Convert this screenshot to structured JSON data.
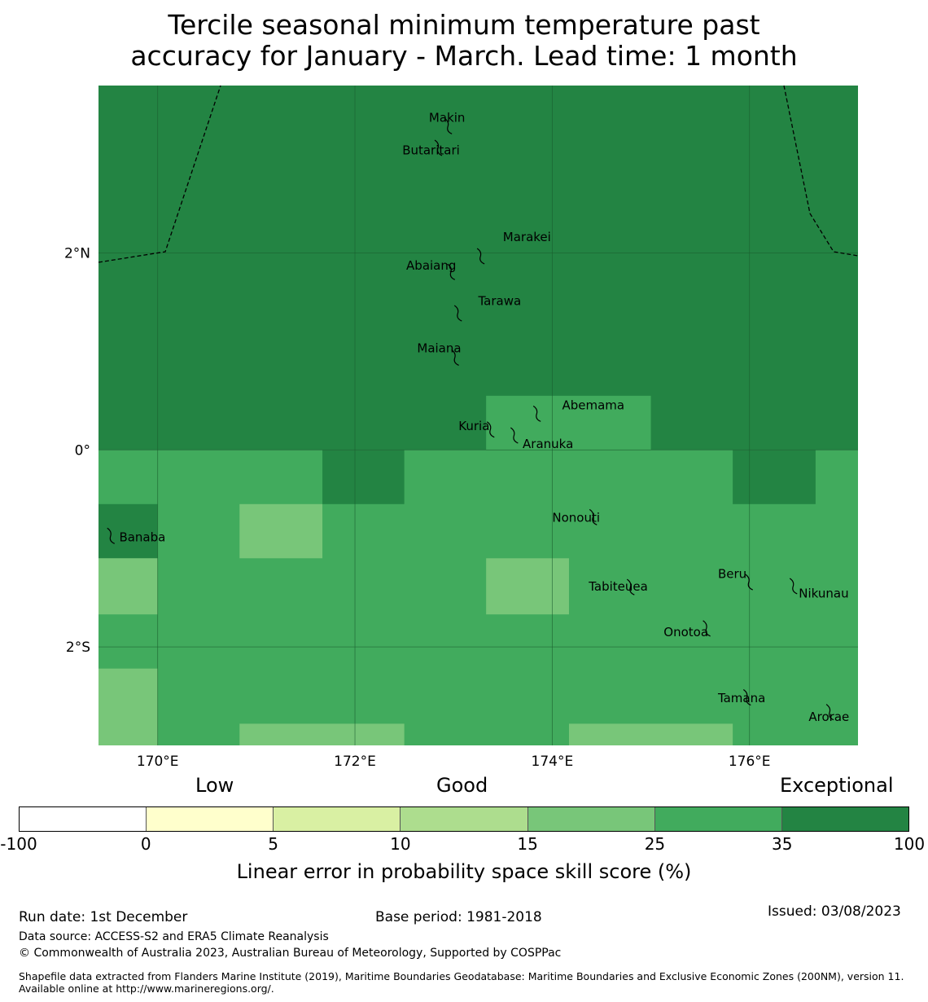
{
  "title": {
    "line1": "Tercile seasonal minimum temperature past",
    "line2": "accuracy for January - March. Lead time: 1 month"
  },
  "map": {
    "lat_range": [
      -3.0,
      3.7
    ],
    "lon_range": [
      169.4,
      177.1
    ],
    "lat_ticks": [
      {
        "value": 2,
        "label": "2°N"
      },
      {
        "value": 0,
        "label": "0°"
      },
      {
        "value": -2,
        "label": "2°S"
      }
    ],
    "lon_ticks": [
      {
        "value": 170,
        "label": "170°E"
      },
      {
        "value": 172,
        "label": "172°E"
      },
      {
        "value": 174,
        "label": "174°E"
      },
      {
        "value": 176,
        "label": "176°E"
      }
    ],
    "background_category": "exceptional",
    "skill_cells": [
      {
        "lon": [
          169.4,
          177.1
        ],
        "lat": [
          0.0,
          3.7
        ],
        "category": "exceptional"
      },
      {
        "lon": [
          169.4,
          177.1
        ],
        "lat": [
          -3.0,
          0.0
        ],
        "category": "good_high"
      },
      {
        "lon": [
          173.33,
          175.0
        ],
        "lat": [
          0.0,
          0.55
        ],
        "category": "good_high"
      },
      {
        "lon": [
          171.67,
          172.5
        ],
        "lat": [
          -0.55,
          0.0
        ],
        "category": "exceptional"
      },
      {
        "lon": [
          175.83,
          176.67
        ],
        "lat": [
          -0.55,
          0.0
        ],
        "category": "exceptional"
      },
      {
        "lon": [
          169.4,
          170.0
        ],
        "lat": [
          -1.1,
          -0.55
        ],
        "category": "exceptional"
      },
      {
        "lon": [
          170.83,
          171.67
        ],
        "lat": [
          -1.1,
          -0.55
        ],
        "category": "good_mid"
      },
      {
        "lon": [
          169.4,
          170.0
        ],
        "lat": [
          -1.67,
          -1.1
        ],
        "category": "good_mid"
      },
      {
        "lon": [
          173.33,
          174.17
        ],
        "lat": [
          -1.67,
          -1.1
        ],
        "category": "good_mid"
      },
      {
        "lon": [
          169.4,
          170.0
        ],
        "lat": [
          -3.0,
          -2.22
        ],
        "category": "good_mid"
      },
      {
        "lon": [
          170.83,
          172.5
        ],
        "lat": [
          -3.0,
          -2.78
        ],
        "category": "good_mid"
      },
      {
        "lon": [
          174.17,
          175.83
        ],
        "lat": [
          -3.0,
          -2.78
        ],
        "category": "good_mid"
      }
    ],
    "places": [
      {
        "name": "Makin",
        "lon": 172.95,
        "lat": 3.3,
        "label_lon": 172.75,
        "label_lat": 3.33
      },
      {
        "name": "Butaritari",
        "lon": 172.85,
        "lat": 3.08,
        "label_lon": 172.48,
        "label_lat": 3.0
      },
      {
        "name": "Marakei",
        "lon": 173.28,
        "lat": 1.98,
        "label_lon": 173.5,
        "label_lat": 2.12
      },
      {
        "name": "Abaiang",
        "lon": 172.98,
        "lat": 1.82,
        "label_lon": 172.52,
        "label_lat": 1.83
      },
      {
        "name": "Tarawa",
        "lon": 173.05,
        "lat": 1.4,
        "label_lon": 173.25,
        "label_lat": 1.47
      },
      {
        "name": "Maiana",
        "lon": 173.02,
        "lat": 0.95,
        "label_lon": 172.63,
        "label_lat": 0.99
      },
      {
        "name": "Abemama",
        "lon": 173.85,
        "lat": 0.38,
        "label_lon": 174.1,
        "label_lat": 0.41
      },
      {
        "name": "Kuria",
        "lon": 173.38,
        "lat": 0.22,
        "label_lon": 173.05,
        "label_lat": 0.2
      },
      {
        "name": "Aranuka",
        "lon": 173.62,
        "lat": 0.16,
        "label_lon": 173.7,
        "label_lat": 0.02
      },
      {
        "name": "Banaba",
        "lon": 169.53,
        "lat": -0.86,
        "label_lon": 169.61,
        "label_lat": -0.93
      },
      {
        "name": "Nonouti",
        "lon": 174.42,
        "lat": -0.67,
        "label_lon": 174.0,
        "label_lat": -0.73
      },
      {
        "name": "Tabiteuea",
        "lon": 174.8,
        "lat": -1.38,
        "label_lon": 174.37,
        "label_lat": -1.43
      },
      {
        "name": "Beru",
        "lon": 176.0,
        "lat": -1.33,
        "label_lon": 175.68,
        "label_lat": -1.3
      },
      {
        "name": "Nikunau",
        "lon": 176.45,
        "lat": -1.37,
        "label_lon": 176.5,
        "label_lat": -1.5
      },
      {
        "name": "Onotoa",
        "lon": 175.57,
        "lat": -1.8,
        "label_lon": 175.13,
        "label_lat": -1.89
      },
      {
        "name": "Tamana",
        "lon": 175.98,
        "lat": -2.5,
        "label_lon": 175.68,
        "label_lat": -2.56
      },
      {
        "name": "Arorae",
        "lon": 176.82,
        "lat": -2.65,
        "label_lon": 176.6,
        "label_lat": -2.75
      }
    ]
  },
  "colorbar": {
    "category_labels": {
      "low": "Low",
      "good": "Good",
      "exceptional": "Exceptional"
    },
    "bins": [
      {
        "key": "none",
        "color": "#ffffff"
      },
      {
        "key": "low1",
        "color": "#ffffcc"
      },
      {
        "key": "low2",
        "color": "#d9f0a3"
      },
      {
        "key": "good_low",
        "color": "#addd8e"
      },
      {
        "key": "good_mid",
        "color": "#78c679"
      },
      {
        "key": "good_high",
        "color": "#41ab5d"
      },
      {
        "key": "exceptional",
        "color": "#238443"
      }
    ],
    "ticks": [
      "-100",
      "0",
      "5",
      "10",
      "15",
      "25",
      "35",
      "100"
    ],
    "title": "Linear error in probability space skill score (%)"
  },
  "footer": {
    "run_date": "Run date: 1st December",
    "base_period": "Base period: 1981-2018",
    "issued": "Issued: 03/08/2023",
    "data_source": "Data source: ACCESS-S2 and ERA5 Climate Reanalysis",
    "copyright": "© Commonwealth of Australia 2023, Australian Bureau of Meteorology, Supported by COSPPac",
    "shapefile": "Shapefile data extracted from Flanders Marine Institute (2019), Maritime Boundaries Geodatabase: Maritime Boundaries and Exclusive Economic Zones (200NM), version 11. Available online at http://www.marineregions.org/."
  }
}
